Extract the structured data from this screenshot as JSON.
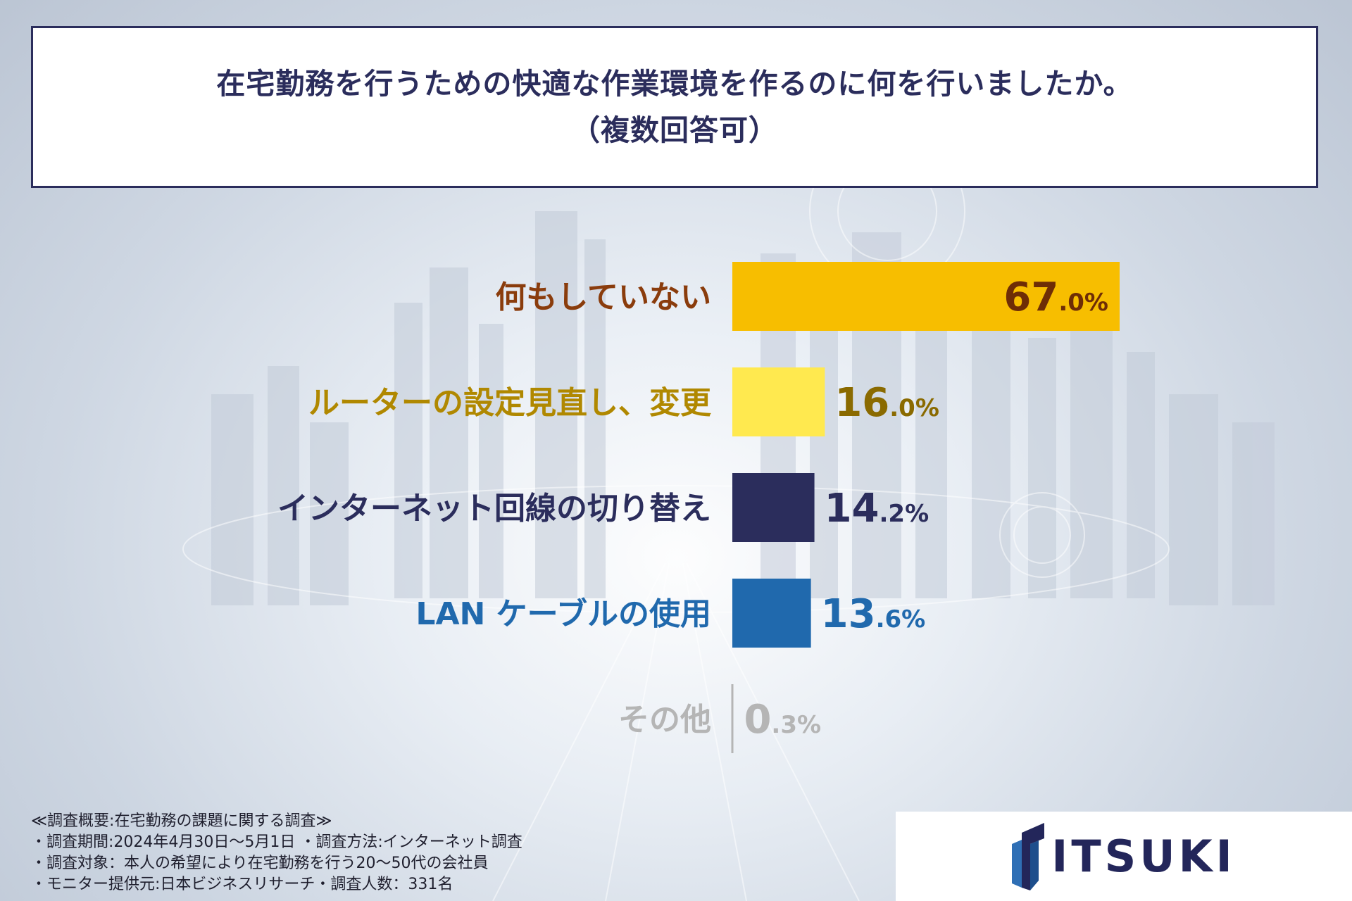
{
  "title": {
    "line1": "在宅勤務を行うための快適な作業環境を作るのに何を行いましたか。",
    "line2": "（複数回答可）"
  },
  "chart_data": {
    "type": "bar",
    "orientation": "horizontal",
    "title": "在宅勤務を行うための快適な作業環境を作るのに何を行いましたか。（複数回答可）",
    "categories": [
      "何もしていない",
      "ルーターの設定見直し、変更",
      "インターネット回線の切り替え",
      "LAN ケーブルの使用",
      "その他"
    ],
    "values": [
      67.0,
      16.0,
      14.2,
      13.6,
      0.3
    ],
    "value_labels": [
      {
        "int": "67",
        "dec": ".0%"
      },
      {
        "int": "16",
        "dec": ".0%"
      },
      {
        "int": "14",
        "dec": ".2%"
      },
      {
        "int": "13",
        "dec": ".6%"
      },
      {
        "int": "0",
        "dec": ".3%"
      }
    ],
    "unit": "%",
    "xlim": [
      0,
      100
    ],
    "colors": [
      "#f7be00",
      "#ffe94f",
      "#2b2d5c",
      "#2069ad",
      "#b5b5b5"
    ],
    "label_colors": [
      "#8a3c0c",
      "#b08800",
      "#2b2d5c",
      "#2069ad",
      "#b5b5b5"
    ],
    "value_colors": [
      "#6e2d06",
      "#8a6a00",
      "#2b2d5c",
      "#2069ad",
      "#b5b5b5"
    ],
    "grid": false,
    "legend": "none"
  },
  "notes": [
    "≪調査概要:在宅勤務の課題に関する調査≫",
    "・調査期間:2024年4月30日～5月1日 ・調査方法:インターネット調査",
    "・調査対象：本人の希望により在宅勤務を行う20～50代の会社員",
    "・モニター提供元:日本ビジネスリサーチ・調査人数：331名"
  ],
  "logo": {
    "text": "ITSUKI",
    "icon": "itsuki-logo-mark-icon",
    "color": "#23265a"
  }
}
